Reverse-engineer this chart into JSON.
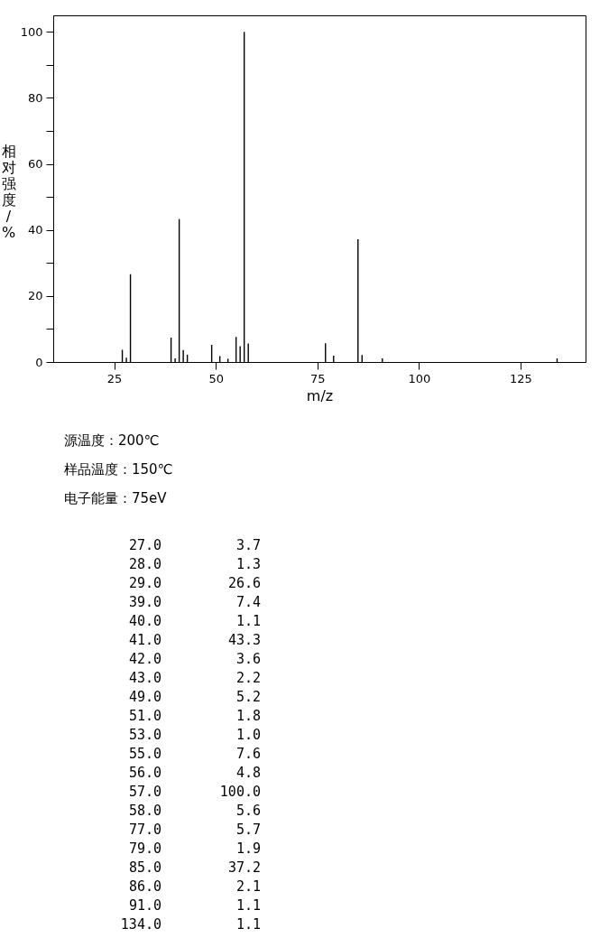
{
  "chart_data": [
    {
      "type": "bar",
      "xlabel": "m/z",
      "ylabel": "相对强度/%",
      "x": [
        27,
        28,
        29,
        39,
        40,
        41,
        42,
        43,
        49,
        51,
        53,
        55,
        56,
        57,
        58,
        77,
        79,
        85,
        86,
        91,
        134
      ],
      "values": [
        3.7,
        1.3,
        26.6,
        7.4,
        1.1,
        43.3,
        3.6,
        2.2,
        5.2,
        1.8,
        1.0,
        7.6,
        4.8,
        100.0,
        5.6,
        5.7,
        1.9,
        37.2,
        2.1,
        1.1,
        1.1
      ],
      "color": "#000000",
      "xlim": [
        10,
        141
      ],
      "xticks": [
        25,
        50,
        75,
        100,
        125
      ],
      "ylim": [
        0,
        105
      ],
      "yticks": [
        0,
        {
          "value": 10,
          "label": null
        },
        20,
        {
          "value": 30,
          "label": null
        },
        40,
        {
          "value": 50,
          "label": null
        },
        60,
        {
          "value": 70,
          "label": null
        },
        80,
        {
          "value": 90,
          "label": null
        },
        100
      ],
      "annotations": [
        "源温度：200℃",
        "样品温度：150℃",
        "电子能量：75eV"
      ]
    },
    {
      "type": "other",
      "categories": [
        "27.0",
        "28.0",
        "29.0",
        "39.0",
        "40.0",
        "41.0",
        "42.0",
        "43.0",
        "49.0",
        "51.0",
        "53.0",
        "55.0",
        "56.0",
        "57.0",
        "58.0",
        "77.0",
        "79.0",
        "85.0",
        "86.0",
        "91.0",
        "134.0"
      ],
      "value_labels": [
        "3.7",
        "1.3",
        "26.6",
        "7.4",
        "1.1",
        "43.3",
        "3.6",
        "2.2",
        "5.2",
        "1.8",
        "1.0",
        "7.6",
        "4.8",
        "100.0",
        "5.6",
        "5.7",
        "1.9",
        "37.2",
        "2.1",
        "1.1",
        "1.1"
      ]
    }
  ]
}
